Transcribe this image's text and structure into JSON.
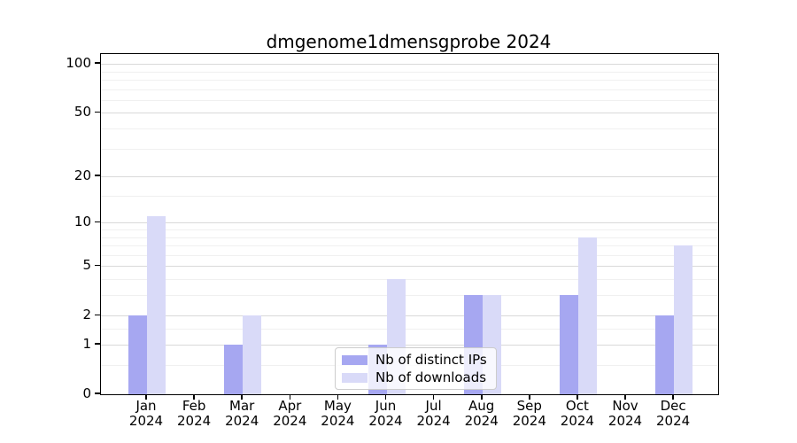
{
  "colors": {
    "distinct_ips": "#a6a7f1",
    "downloads": "#d9daf8",
    "grid_major": "#d9d9d9",
    "grid_minor": "#f0f0f0",
    "axis": "#000000",
    "legend_border": "#cccccc",
    "background": "#ffffff",
    "text": "#000000"
  },
  "chart_data": {
    "type": "bar",
    "title": "dmgenome1dmensgprobe 2024",
    "categories": [
      "Jan",
      "Feb",
      "Mar",
      "Apr",
      "May",
      "Jun",
      "Jul",
      "Aug",
      "Sep",
      "Oct",
      "Nov",
      "Dec"
    ],
    "x_tick_second_line": "2024",
    "series": [
      {
        "name": "Nb of distinct IPs",
        "color": "#a6a7f1",
        "values": [
          2,
          0,
          1,
          0,
          0,
          1,
          0,
          3,
          0,
          3,
          0,
          2
        ]
      },
      {
        "name": "Nb of downloads",
        "color": "#d9daf8",
        "values": [
          11,
          0,
          2,
          0,
          0,
          4,
          0,
          3,
          0,
          8,
          0,
          7
        ]
      }
    ],
    "y_axis": {
      "scale": "log10(1+x)",
      "major_ticks": [
        0,
        1,
        2,
        5,
        10,
        20,
        50,
        100
      ],
      "minor_ticks": [
        0.5,
        1.5,
        3,
        4,
        6,
        7,
        8,
        9,
        15,
        30,
        40,
        60,
        70,
        80,
        90
      ],
      "top_value": 115
    },
    "grid": true,
    "legend_position": "lower center"
  }
}
